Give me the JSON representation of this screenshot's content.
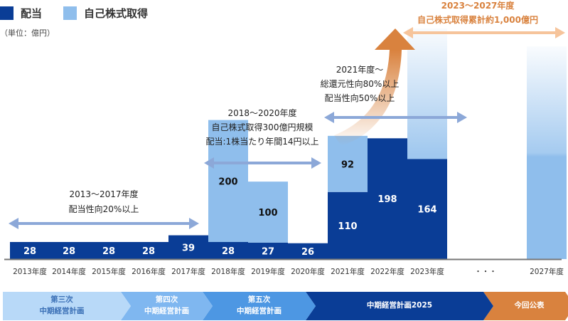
{
  "legend": {
    "dividend": {
      "label": "配当",
      "color": "#0a3d96"
    },
    "buyback": {
      "label": "自己株式取得",
      "color": "#8fbeec"
    }
  },
  "unit_label": "（単位：億円）",
  "chart_data": {
    "type": "bar",
    "stacked": true,
    "title": "",
    "xlabel": "",
    "ylabel": "億円",
    "categories": [
      "2013年度",
      "2014年度",
      "2015年度",
      "2016年度",
      "2017年度",
      "2018年度",
      "2019年度",
      "2020年度",
      "2021年度",
      "2022年度",
      "2023年度",
      "・・・",
      "2027年度"
    ],
    "series": [
      {
        "name": "配当",
        "color": "#0a3d96",
        "values": [
          28,
          28,
          28,
          28,
          39,
          28,
          27,
          26,
          110,
          198,
          164,
          null,
          null
        ]
      },
      {
        "name": "自己株式取得",
        "color": "#8fbeec",
        "values": [
          null,
          null,
          null,
          null,
          null,
          200,
          100,
          null,
          92,
          null,
          null,
          null,
          null
        ]
      }
    ],
    "projected_buyback_categories": [
      "2023年度",
      "2027年度"
    ],
    "annotations": [
      {
        "lines": [
          "2013〜2017年度",
          "配当性向20%以上"
        ],
        "span": [
          "2013年度",
          "2017年度"
        ]
      },
      {
        "lines": [
          "2018〜2020年度",
          "自己株式取得300億円規模",
          "配当:1株当たり年間14円以上"
        ],
        "span": [
          "2018年度",
          "2020年度"
        ]
      },
      {
        "lines": [
          "2021年度〜",
          "総還元性向80%以上",
          "配当性向50%以上"
        ],
        "span": [
          "2021年度",
          "2023年度"
        ]
      },
      {
        "lines": [
          "2023〜2027年度",
          "自己株式取得累計約1,000億円"
        ],
        "span": [
          "2023年度",
          "2027年度"
        ],
        "color": "#d9823e"
      }
    ]
  },
  "plans": [
    {
      "lines": [
        "第三次",
        "中期経営計画"
      ],
      "bg": "#b8d9f8",
      "fg": "#3a6fb5"
    },
    {
      "lines": [
        "第四次",
        "中期経営計画"
      ],
      "bg": "#7fb7f0",
      "fg": "#ffffff"
    },
    {
      "lines": [
        "第五次",
        "中期経営計画"
      ],
      "bg": "#4d97e3",
      "fg": "#ffffff"
    },
    {
      "lines": [
        "中期経営計画2025"
      ],
      "bg": "#0a3d96",
      "fg": "#ffffff"
    },
    {
      "lines": [
        "今回公表"
      ],
      "bg": "#d9823e",
      "fg": "#ffffff"
    }
  ]
}
